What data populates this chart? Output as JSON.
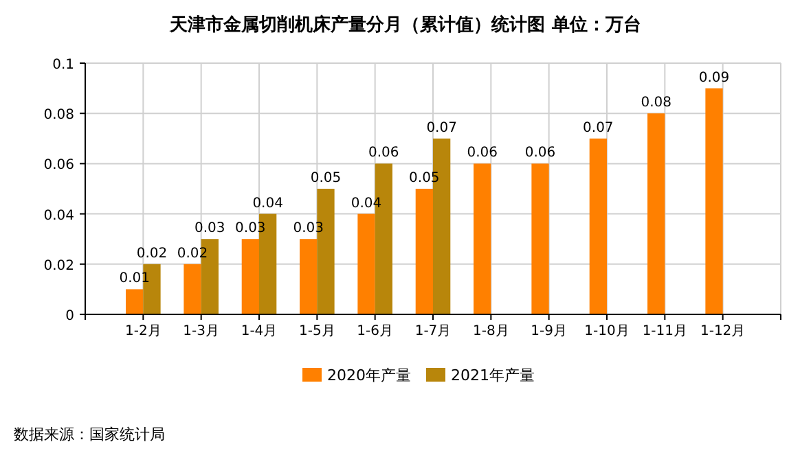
{
  "chart_data": {
    "type": "bar",
    "title": "天津市金属切削机床产量分月（累计值）统计图 单位：万台",
    "categories": [
      "1-2月",
      "1-3月",
      "1-4月",
      "1-5月",
      "1-6月",
      "1-7月",
      "1-8月",
      "1-9月",
      "1-10月",
      "1-11月",
      "1-12月"
    ],
    "series": [
      {
        "name": "2020年产量",
        "color": "#ff8000",
        "values": [
          0.01,
          0.02,
          0.03,
          0.03,
          0.04,
          0.05,
          0.06,
          0.06,
          0.07,
          0.08,
          0.09
        ]
      },
      {
        "name": "2021年产量",
        "color": "#b8860b",
        "values": [
          0.02,
          0.03,
          0.04,
          0.05,
          0.06,
          0.07,
          null,
          null,
          null,
          null,
          null
        ]
      }
    ],
    "ylim": [
      0,
      0.1
    ],
    "yticks": [
      0,
      0.02,
      0.04,
      0.06,
      0.08,
      0.1
    ],
    "grid": true,
    "legend": "bottom",
    "data_labels": true,
    "annotations": [
      "数据来源：国家统计局"
    ]
  }
}
